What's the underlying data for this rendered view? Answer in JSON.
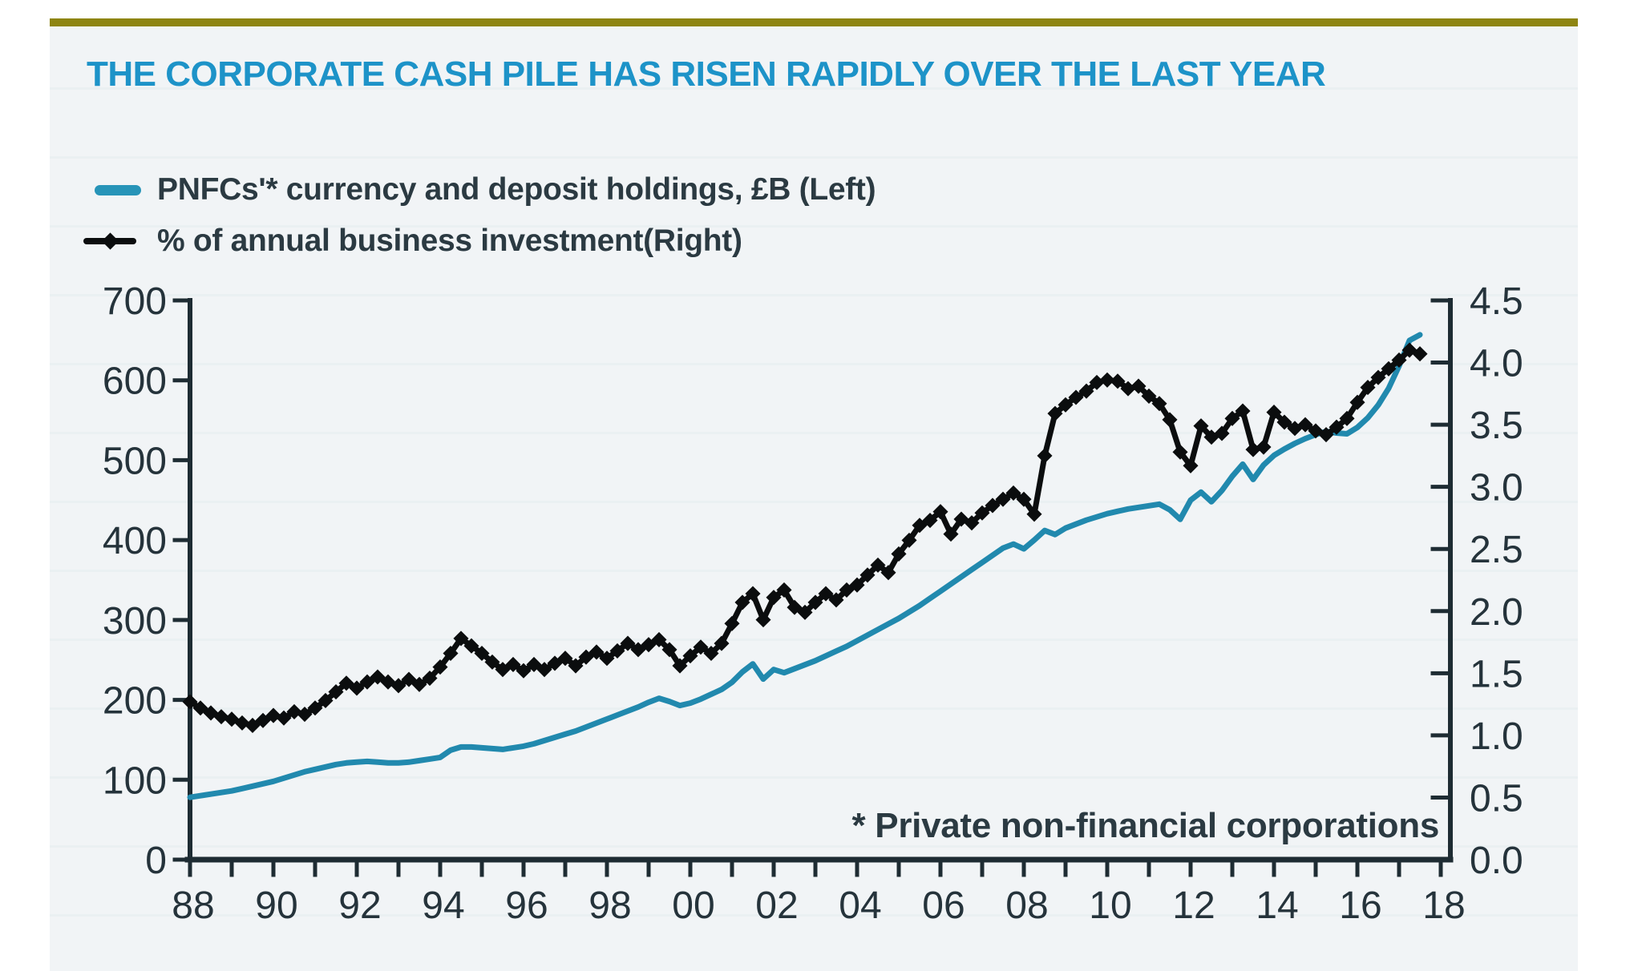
{
  "header": {
    "title": "THE CORPORATE CASH PILE HAS RISEN RAPIDLY OVER THE LAST YEAR"
  },
  "legend": {
    "items": [
      {
        "label": "PNFCs'* currency and deposit holdings, £B (Left)",
        "marker": "line",
        "color": "#2794b8"
      },
      {
        "label": "% of annual business investment(Right)",
        "marker": "line-diamond",
        "color": "#0b0d0e"
      }
    ]
  },
  "footnote": "* Private non-financial corporations",
  "colors": {
    "accent_bar": "#8e8512",
    "title": "#1d93c8",
    "panel_bg": "#f1f4f6",
    "axis": "#1e2c33",
    "text": "#25333b",
    "series_cash": "#2189ae",
    "series_investment": "#0b0d0e"
  },
  "chart_data": {
    "type": "line",
    "title": "THE CORPORATE CASH PILE HAS RISEN RAPIDLY OVER THE LAST YEAR",
    "x": {
      "start": 1988.0,
      "step": 0.25,
      "min": 1988,
      "max": 2018.4,
      "minor_tick_every_years": 1,
      "tick_years": [
        1988,
        1990,
        1992,
        1994,
        1996,
        1998,
        2000,
        2002,
        2004,
        2006,
        2008,
        2010,
        2012,
        2014,
        2016,
        2018
      ],
      "tick_labels": [
        "88",
        "90",
        "92",
        "94",
        "96",
        "98",
        "00",
        "02",
        "04",
        "06",
        "08",
        "10",
        "12",
        "14",
        "16",
        "18"
      ]
    },
    "axes": {
      "left": {
        "min": 0,
        "max": 700,
        "tick_values": [
          0,
          100,
          200,
          300,
          400,
          500,
          600,
          700
        ],
        "tick_labels": [
          "0",
          "100",
          "200",
          "300",
          "400",
          "500",
          "600",
          "700"
        ]
      },
      "right": {
        "min": 0,
        "max": 4.5,
        "tick_values": [
          0,
          0.5,
          1,
          1.5,
          2,
          2.5,
          3,
          3.5,
          4,
          4.5
        ],
        "tick_labels": [
          "0.0",
          "0.5",
          "1.0",
          "1.5",
          "2.0",
          "2.5",
          "3.0",
          "3.5",
          "4.0",
          "4.5"
        ]
      }
    },
    "grid": false,
    "legend_position": "top-left",
    "series": [
      {
        "name": "PNFCs'* currency and deposit holdings, £B (Left)",
        "axis": "left",
        "color": "#2189ae",
        "marker": "none",
        "line_width": 7,
        "values": [
          78,
          80,
          82,
          84,
          86,
          89,
          92,
          95,
          98,
          102,
          106,
          110,
          113,
          116,
          119,
          121,
          122,
          123,
          122,
          121,
          121,
          122,
          124,
          126,
          128,
          137,
          141,
          141,
          140,
          139,
          138,
          140,
          142,
          145,
          149,
          153,
          157,
          161,
          166,
          171,
          176,
          181,
          186,
          191,
          197,
          202,
          198,
          193,
          196,
          201,
          207,
          213,
          222,
          235,
          245,
          226,
          238,
          234,
          239,
          244,
          249,
          255,
          261,
          267,
          274,
          281,
          288,
          295,
          302,
          310,
          318,
          327,
          336,
          345,
          354,
          363,
          372,
          381,
          390,
          395,
          389,
          400,
          412,
          407,
          415,
          420,
          425,
          429,
          433,
          436,
          439,
          441,
          443,
          445,
          438,
          426,
          450,
          460,
          448,
          462,
          480,
          495,
          476,
          494,
          506,
          514,
          521,
          527,
          532,
          536,
          534,
          533,
          541,
          553,
          569,
          590,
          618,
          650,
          657
        ]
      },
      {
        "name": "% of annual business investment(Right)",
        "axis": "right",
        "color": "#0b0d0e",
        "marker": "diamond",
        "line_width": 7,
        "values": [
          1.27,
          1.22,
          1.18,
          1.15,
          1.13,
          1.1,
          1.08,
          1.12,
          1.16,
          1.14,
          1.19,
          1.17,
          1.22,
          1.28,
          1.35,
          1.42,
          1.38,
          1.43,
          1.47,
          1.43,
          1.4,
          1.45,
          1.41,
          1.46,
          1.55,
          1.66,
          1.78,
          1.72,
          1.66,
          1.59,
          1.53,
          1.57,
          1.52,
          1.57,
          1.53,
          1.58,
          1.62,
          1.56,
          1.63,
          1.67,
          1.62,
          1.68,
          1.74,
          1.69,
          1.73,
          1.77,
          1.69,
          1.56,
          1.64,
          1.71,
          1.66,
          1.74,
          1.9,
          2.07,
          2.14,
          1.93,
          2.11,
          2.17,
          2.03,
          1.99,
          2.07,
          2.14,
          2.09,
          2.17,
          2.21,
          2.29,
          2.37,
          2.31,
          2.46,
          2.57,
          2.69,
          2.73,
          2.8,
          2.62,
          2.74,
          2.71,
          2.79,
          2.85,
          2.9,
          2.95,
          2.9,
          2.78,
          3.25,
          3.59,
          3.66,
          3.72,
          3.77,
          3.84,
          3.86,
          3.85,
          3.79,
          3.81,
          3.73,
          3.67,
          3.54,
          3.28,
          3.17,
          3.49,
          3.4,
          3.43,
          3.55,
          3.61,
          3.3,
          3.32,
          3.6,
          3.52,
          3.47,
          3.5,
          3.45,
          3.42,
          3.48,
          3.55,
          3.68,
          3.8,
          3.88,
          3.95,
          4.02,
          4.1,
          4.07
        ]
      }
    ],
    "footnote": "* Private non-financial corporations"
  }
}
